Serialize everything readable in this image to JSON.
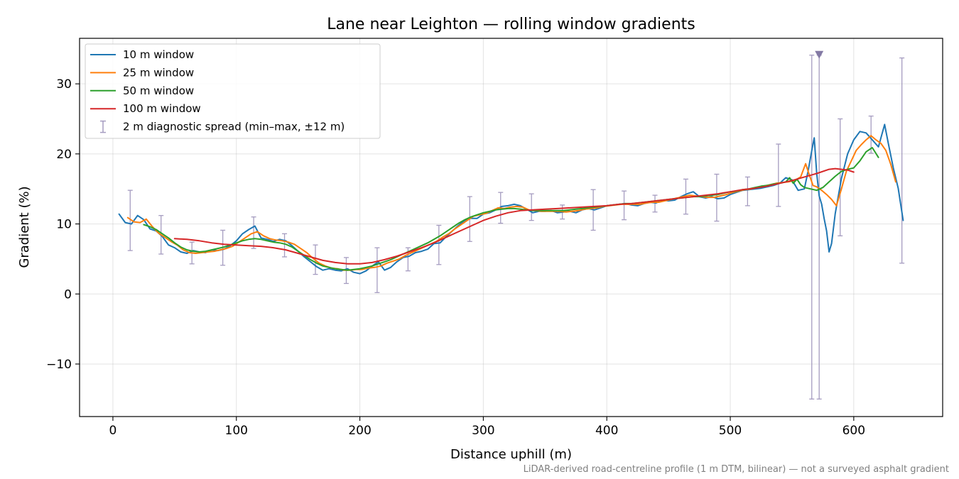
{
  "chart_data": {
    "type": "line",
    "title": "Lane near Leighton — rolling window gradients",
    "xlabel": "Distance uphill (m)",
    "ylabel": "Gradient (%)",
    "xlim": [
      -27,
      672
    ],
    "ylim": [
      -17.5,
      36.5
    ],
    "xticks": [
      0,
      100,
      200,
      300,
      400,
      500,
      600
    ],
    "yticks": [
      -10,
      0,
      10,
      20,
      30
    ],
    "xtick_labels": [
      "0",
      "100",
      "200",
      "300",
      "400",
      "500",
      "600"
    ],
    "ytick_labels": [
      "−10",
      "0",
      "10",
      "20",
      "30"
    ],
    "grid": true,
    "legend_position": "top-left",
    "footnote": "LiDAR-derived road-centreline profile (1 m DTM, bilinear) — not a surveyed asphalt gradient",
    "series": [
      {
        "name": "10 m window",
        "color": "#1f77b4",
        "x": [
          5,
          10,
          15,
          20,
          25,
          30,
          35,
          40,
          45,
          50,
          55,
          60,
          65,
          70,
          75,
          80,
          85,
          90,
          95,
          100,
          105,
          110,
          115,
          120,
          125,
          130,
          135,
          140,
          145,
          150,
          155,
          160,
          165,
          170,
          175,
          180,
          185,
          190,
          195,
          200,
          205,
          210,
          215,
          220,
          225,
          230,
          235,
          240,
          245,
          250,
          255,
          260,
          265,
          270,
          275,
          280,
          285,
          290,
          295,
          300,
          305,
          310,
          315,
          320,
          325,
          330,
          335,
          340,
          345,
          350,
          355,
          360,
          365,
          370,
          375,
          380,
          385,
          390,
          395,
          400,
          405,
          410,
          415,
          420,
          425,
          430,
          435,
          440,
          445,
          450,
          455,
          460,
          465,
          470,
          475,
          480,
          485,
          490,
          495,
          500,
          505,
          510,
          515,
          520,
          525,
          530,
          535,
          540,
          545,
          550,
          555,
          560,
          563,
          566,
          568,
          570,
          572,
          574,
          576,
          578,
          580,
          582,
          585,
          590,
          595,
          600,
          605,
          610,
          615,
          620,
          625,
          628,
          632,
          636,
          640
        ],
        "y": [
          11.4,
          10.2,
          10.0,
          11.2,
          10.6,
          9.3,
          9.0,
          8.2,
          7.0,
          6.6,
          6.0,
          5.8,
          6.2,
          6.0,
          5.9,
          6.3,
          6.2,
          6.4,
          6.9,
          7.6,
          8.6,
          9.2,
          9.7,
          8.0,
          7.8,
          7.5,
          7.8,
          7.6,
          6.9,
          6.1,
          5.3,
          4.6,
          3.9,
          3.4,
          3.6,
          3.4,
          3.3,
          3.6,
          3.1,
          2.9,
          3.3,
          4.0,
          4.6,
          3.4,
          3.8,
          4.6,
          5.2,
          5.4,
          5.9,
          6.1,
          6.4,
          7.2,
          7.3,
          8.2,
          9.0,
          9.8,
          10.5,
          10.8,
          10.8,
          11.4,
          11.6,
          12.0,
          12.5,
          12.6,
          12.8,
          12.6,
          12.1,
          11.6,
          11.8,
          11.8,
          11.9,
          11.6,
          11.7,
          11.8,
          11.6,
          12.0,
          12.2,
          12.0,
          12.3,
          12.6,
          12.7,
          12.8,
          12.9,
          12.7,
          12.6,
          12.9,
          13.1,
          13.0,
          13.4,
          13.3,
          13.4,
          13.9,
          14.3,
          14.6,
          13.9,
          13.7,
          13.9,
          13.6,
          13.7,
          14.2,
          14.5,
          14.8,
          14.9,
          15.0,
          15.1,
          15.3,
          15.5,
          15.8,
          16.6,
          16.3,
          14.8,
          15.0,
          17.5,
          20.5,
          22.3,
          17.2,
          14.0,
          12.8,
          10.8,
          9.0,
          6.0,
          7.2,
          11.5,
          16.5,
          20.0,
          22.0,
          23.2,
          23.0,
          22.0,
          21.0,
          24.2,
          21.5,
          18.0,
          15.1,
          10.5
        ]
      },
      {
        "name": "25 m window",
        "color": "#ff7f0e",
        "x": [
          12,
          17,
          22,
          27,
          32,
          37,
          42,
          47,
          52,
          57,
          62,
          67,
          72,
          77,
          82,
          87,
          92,
          97,
          102,
          107,
          112,
          117,
          122,
          127,
          132,
          137,
          142,
          147,
          152,
          157,
          162,
          167,
          172,
          177,
          182,
          187,
          192,
          197,
          202,
          207,
          212,
          217,
          222,
          227,
          232,
          237,
          242,
          247,
          252,
          257,
          262,
          267,
          272,
          277,
          282,
          287,
          292,
          297,
          302,
          307,
          312,
          317,
          322,
          327,
          332,
          337,
          342,
          347,
          352,
          357,
          362,
          367,
          372,
          377,
          382,
          387,
          392,
          397,
          402,
          407,
          412,
          417,
          422,
          427,
          432,
          437,
          442,
          447,
          452,
          457,
          462,
          467,
          472,
          477,
          482,
          487,
          492,
          497,
          502,
          507,
          512,
          517,
          522,
          527,
          532,
          537,
          542,
          547,
          552,
          557,
          561,
          564,
          567,
          570,
          574,
          578,
          582,
          586,
          590,
          594,
          598,
          602,
          606,
          610,
          614,
          618,
          622,
          626,
          630,
          634
        ],
        "y": [
          10.9,
          10.3,
          10.2,
          10.7,
          9.6,
          8.7,
          8.1,
          7.5,
          7.0,
          6.3,
          5.9,
          5.8,
          5.9,
          6.0,
          6.1,
          6.3,
          6.5,
          6.8,
          7.4,
          8.0,
          8.6,
          8.9,
          8.3,
          7.9,
          7.7,
          7.6,
          7.4,
          7.1,
          6.5,
          5.9,
          5.1,
          4.4,
          4.0,
          3.7,
          3.6,
          3.4,
          3.4,
          3.5,
          3.5,
          3.7,
          3.8,
          4.0,
          4.4,
          4.7,
          5.0,
          5.5,
          5.9,
          6.3,
          6.7,
          7.1,
          7.5,
          8.1,
          8.6,
          9.3,
          9.9,
          10.5,
          11.1,
          11.3,
          11.5,
          11.9,
          12.3,
          12.2,
          12.4,
          12.5,
          12.4,
          12.0,
          11.9,
          11.8,
          11.8,
          11.8,
          11.8,
          11.7,
          11.8,
          11.9,
          12.1,
          12.2,
          12.3,
          12.5,
          12.6,
          12.7,
          12.8,
          12.8,
          12.8,
          12.8,
          13.0,
          13.1,
          13.1,
          13.3,
          13.5,
          13.7,
          13.9,
          14.1,
          14.0,
          13.9,
          13.8,
          13.8,
          14.0,
          14.2,
          14.5,
          14.7,
          14.9,
          15.0,
          15.2,
          15.4,
          15.6,
          15.8,
          15.9,
          16.0,
          16.2,
          16.7,
          18.6,
          17.0,
          15.5,
          15.3,
          14.8,
          14.2,
          13.5,
          12.6,
          15.0,
          17.5,
          19.0,
          20.5,
          21.3,
          22.0,
          22.6,
          22.0,
          21.5,
          20.5,
          18.5,
          16.0
        ]
      },
      {
        "name": "50 m window",
        "color": "#2ca02c",
        "x": [
          25,
          30,
          35,
          40,
          45,
          50,
          55,
          60,
          65,
          70,
          75,
          80,
          85,
          90,
          95,
          100,
          105,
          110,
          115,
          120,
          125,
          130,
          135,
          140,
          145,
          150,
          155,
          160,
          165,
          170,
          175,
          180,
          185,
          190,
          195,
          200,
          205,
          210,
          215,
          220,
          225,
          230,
          235,
          240,
          245,
          250,
          255,
          260,
          265,
          270,
          275,
          280,
          285,
          290,
          295,
          300,
          305,
          310,
          315,
          320,
          325,
          330,
          335,
          340,
          345,
          350,
          355,
          360,
          365,
          370,
          375,
          380,
          385,
          390,
          395,
          400,
          405,
          410,
          415,
          420,
          425,
          430,
          435,
          440,
          445,
          450,
          455,
          460,
          465,
          470,
          475,
          480,
          485,
          490,
          495,
          500,
          505,
          510,
          515,
          520,
          525,
          530,
          535,
          540,
          545,
          548,
          551,
          554,
          557,
          560,
          565,
          570,
          575,
          580,
          585,
          590,
          595,
          600,
          605,
          610,
          615,
          620
        ],
        "y": [
          9.9,
          9.6,
          9.2,
          8.6,
          8.0,
          7.3,
          6.7,
          6.3,
          6.1,
          6.0,
          6.1,
          6.3,
          6.5,
          6.7,
          7.0,
          7.3,
          7.6,
          7.8,
          7.9,
          7.8,
          7.6,
          7.4,
          7.3,
          7.1,
          6.7,
          6.1,
          5.5,
          4.9,
          4.4,
          4.0,
          3.8,
          3.6,
          3.5,
          3.4,
          3.5,
          3.6,
          3.8,
          4.0,
          4.3,
          4.6,
          4.9,
          5.3,
          5.7,
          6.1,
          6.5,
          6.9,
          7.3,
          7.8,
          8.3,
          8.9,
          9.5,
          10.1,
          10.6,
          11.0,
          11.3,
          11.6,
          11.8,
          12.0,
          12.1,
          12.2,
          12.2,
          12.1,
          12.0,
          11.9,
          11.9,
          11.9,
          11.9,
          11.9,
          11.9,
          12.0,
          12.1,
          12.2,
          12.3,
          12.4,
          12.5,
          12.6,
          12.7,
          12.8,
          12.9,
          12.9,
          13.0,
          13.1,
          13.2,
          13.3,
          13.4,
          13.5,
          13.6,
          13.7,
          13.8,
          13.9,
          13.9,
          14.0,
          14.1,
          14.2,
          14.4,
          14.6,
          14.7,
          14.9,
          15.0,
          15.2,
          15.4,
          15.5,
          15.7,
          15.8,
          16.0,
          16.6,
          15.8,
          16.4,
          15.6,
          15.2,
          15.0,
          14.8,
          15.2,
          16.0,
          16.8,
          17.5,
          17.8,
          18.0,
          19.0,
          20.3,
          20.9,
          19.5
        ]
      },
      {
        "name": "100 m window",
        "color": "#d62728",
        "x": [
          50,
          60,
          70,
          80,
          90,
          100,
          110,
          120,
          130,
          140,
          150,
          160,
          170,
          180,
          190,
          200,
          210,
          220,
          230,
          240,
          250,
          260,
          270,
          280,
          290,
          300,
          310,
          320,
          330,
          340,
          350,
          360,
          370,
          380,
          390,
          400,
          410,
          420,
          430,
          440,
          450,
          460,
          470,
          480,
          490,
          500,
          510,
          520,
          530,
          540,
          550,
          560,
          570,
          580,
          585,
          590,
          595,
          600
        ],
        "y": [
          7.9,
          7.8,
          7.6,
          7.3,
          7.1,
          7.0,
          6.9,
          6.8,
          6.6,
          6.3,
          5.8,
          5.3,
          4.8,
          4.5,
          4.3,
          4.3,
          4.5,
          4.9,
          5.4,
          6.0,
          6.6,
          7.3,
          8.1,
          8.9,
          9.7,
          10.5,
          11.1,
          11.6,
          11.9,
          12.0,
          12.1,
          12.2,
          12.3,
          12.4,
          12.5,
          12.6,
          12.8,
          12.9,
          13.1,
          13.3,
          13.5,
          13.7,
          13.9,
          14.1,
          14.3,
          14.6,
          14.9,
          15.1,
          15.4,
          15.8,
          16.2,
          16.7,
          17.2,
          17.8,
          17.9,
          17.8,
          17.7,
          17.4
        ]
      }
    ],
    "error_bars": {
      "name": "2 m diagnostic spread (min–max, ±12 m)",
      "color": "#a59cc0",
      "x": [
        14,
        39,
        64,
        89,
        114,
        139,
        164,
        189,
        214,
        239,
        264,
        289,
        314,
        339,
        364,
        389,
        414,
        439,
        464,
        489,
        514,
        539,
        566,
        572,
        589,
        614,
        639
      ],
      "center": [
        10.5,
        8.4,
        5.8,
        6.6,
        8.7,
        7.0,
        4.8,
        3.3,
        3.4,
        4.9,
        7.0,
        10.7,
        12.2,
        12.4,
        11.8,
        12.0,
        12.7,
        12.9,
        13.9,
        13.8,
        14.6,
        16.9,
        9.5,
        9.5,
        16.6,
        22.8,
        19.0
      ],
      "low": [
        6.2,
        5.7,
        4.3,
        4.1,
        6.5,
        5.3,
        2.8,
        1.5,
        0.2,
        3.3,
        4.2,
        7.5,
        10.1,
        10.5,
        10.7,
        9.1,
        10.6,
        11.7,
        11.4,
        10.4,
        12.6,
        12.5,
        -15.0,
        -15.0,
        8.3,
        20.1,
        4.4
      ],
      "high": [
        14.8,
        11.2,
        7.4,
        9.1,
        11.0,
        8.6,
        7.0,
        5.2,
        6.6,
        6.6,
        9.8,
        13.9,
        14.5,
        14.3,
        12.7,
        14.9,
        14.7,
        14.1,
        16.4,
        17.1,
        16.7,
        21.4,
        34.1,
        34.1,
        25.0,
        25.4,
        33.7
      ],
      "clipped_marker": {
        "x": 572,
        "y": 34.1,
        "symbol": "triangle-down",
        "color": "#8379a4"
      }
    }
  }
}
